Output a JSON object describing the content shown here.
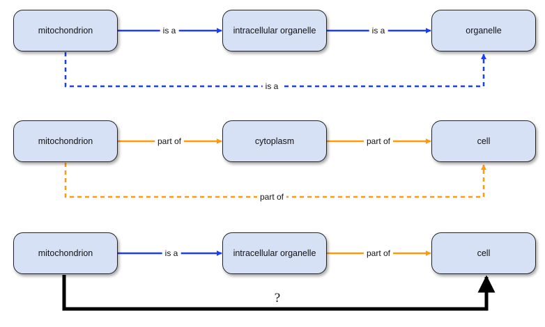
{
  "colors": {
    "is_a": "#1a3dff",
    "part_of": "#ff9a0d",
    "unknown": "#000000",
    "node_fill": "#d6e1f5"
  },
  "row1": {
    "nodes": [
      "mitochondrion",
      "intracellular organelle",
      "organelle"
    ],
    "edge1_label": "is a",
    "edge2_label": "is a",
    "inferred_label": "is a"
  },
  "row2": {
    "nodes": [
      "mitochondrion",
      "cytoplasm",
      "cell"
    ],
    "edge1_label": "part of",
    "edge2_label": "part of",
    "inferred_label": "part of"
  },
  "row3": {
    "nodes": [
      "mitochondrion",
      "intracellular organelle",
      "cell"
    ],
    "edge1_label": "is a",
    "edge2_label": "part of",
    "inferred_label": "?"
  }
}
